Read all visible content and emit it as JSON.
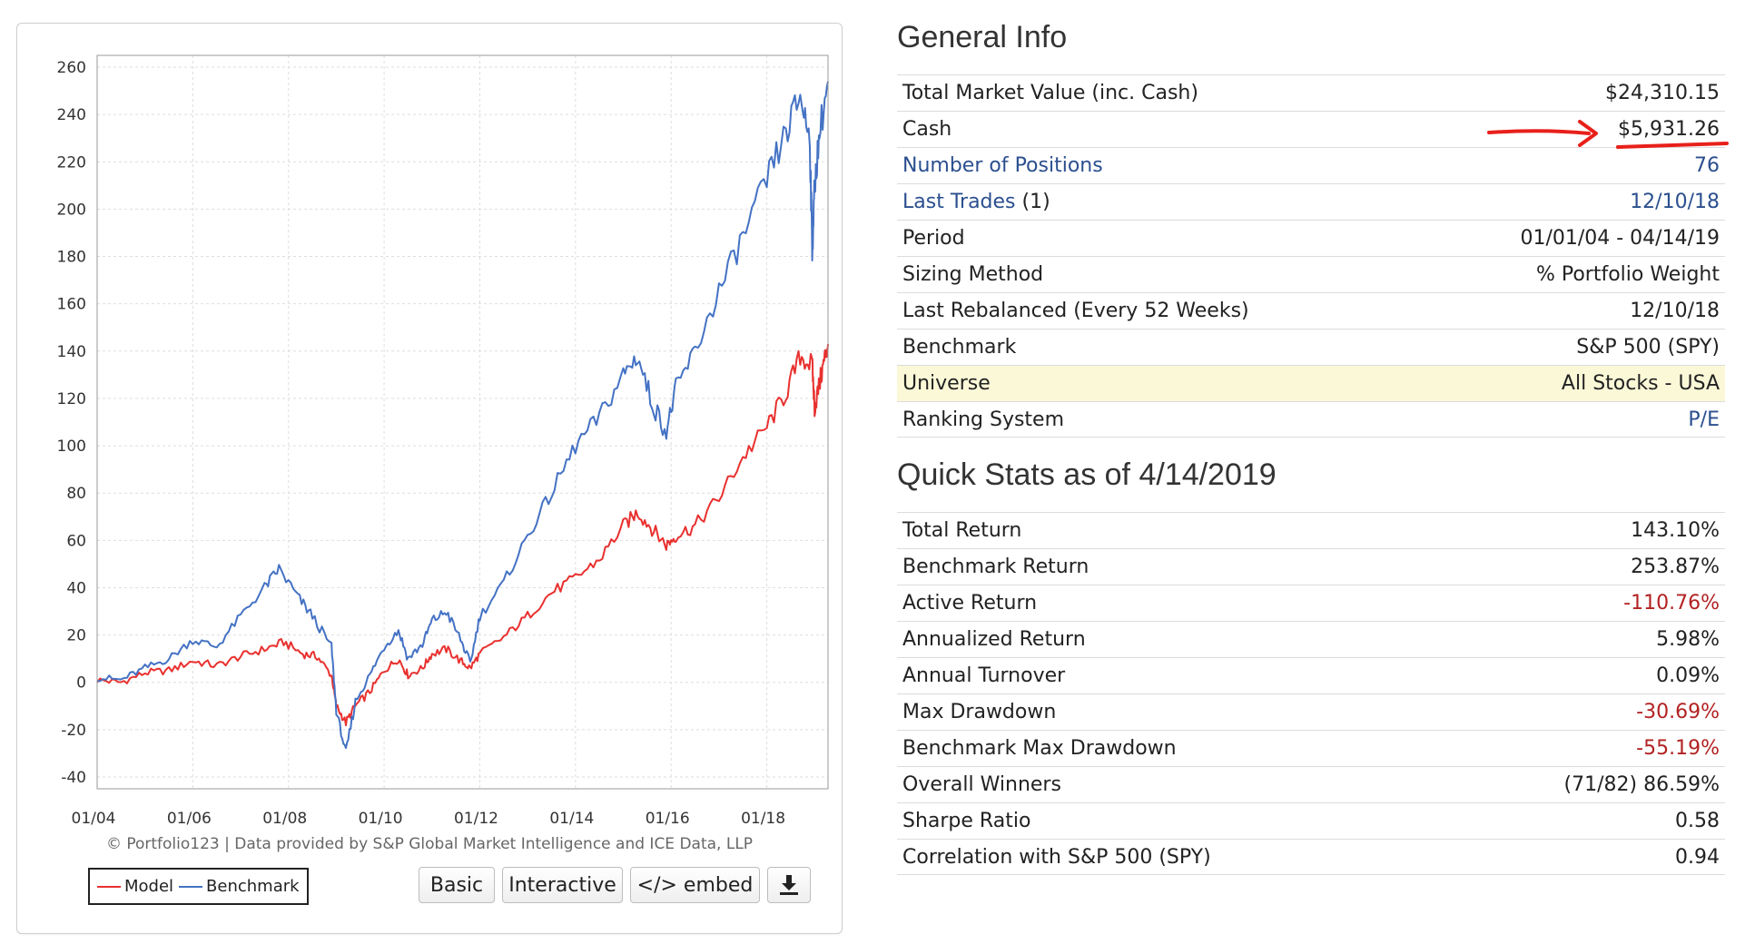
{
  "chart_data": {
    "type": "line",
    "xlabel": "",
    "ylabel": "",
    "x_ticks": [
      "01/04",
      "01/06",
      "01/08",
      "01/10",
      "01/12",
      "01/14",
      "01/16",
      "01/18"
    ],
    "x_range": [
      2004.0,
      2019.28
    ],
    "y_ticks": [
      260,
      240,
      220,
      200,
      180,
      160,
      140,
      120,
      100,
      80,
      60,
      40,
      20,
      0,
      -20,
      -40
    ],
    "ylim": [
      -45,
      265
    ],
    "grid": true,
    "legend_position": "bottom-left",
    "series": [
      {
        "name": "Model",
        "color": "#e8312f",
        "x": [
          2004.0,
          2004.5,
          2005.0,
          2005.5,
          2006.0,
          2006.5,
          2007.0,
          2007.5,
          2007.9,
          2008.3,
          2008.6,
          2008.9,
          2009.0,
          2009.2,
          2009.4,
          2009.7,
          2010.0,
          2010.3,
          2010.5,
          2010.8,
          2011.0,
          2011.3,
          2011.6,
          2011.8,
          2012.0,
          2012.5,
          2013.0,
          2013.5,
          2014.0,
          2014.5,
          2015.0,
          2015.3,
          2015.6,
          2015.9,
          2016.1,
          2016.5,
          2017.0,
          2017.5,
          2018.0,
          2018.4,
          2018.7,
          2018.95,
          2019.0,
          2019.1,
          2019.2,
          2019.28
        ],
        "y": [
          1,
          0,
          4,
          5,
          9,
          7,
          11,
          14,
          17,
          12,
          11,
          3,
          -10,
          -17,
          -10,
          -4,
          5,
          10,
          3,
          6,
          12,
          14,
          9,
          6,
          12,
          19,
          28,
          38,
          44,
          52,
          66,
          72,
          65,
          58,
          62,
          66,
          78,
          95,
          108,
          122,
          138,
          134,
          116,
          126,
          136,
          143
        ]
      },
      {
        "name": "Benchmark",
        "color": "#4472c4",
        "x": [
          2004.0,
          2004.5,
          2005.0,
          2005.5,
          2006.0,
          2006.5,
          2007.0,
          2007.5,
          2007.8,
          2008.2,
          2008.5,
          2008.9,
          2009.0,
          2009.2,
          2009.4,
          2009.7,
          2010.0,
          2010.3,
          2010.5,
          2010.8,
          2011.0,
          2011.3,
          2011.6,
          2011.8,
          2012.0,
          2012.5,
          2013.0,
          2013.5,
          2014.0,
          2014.5,
          2015.0,
          2015.3,
          2015.6,
          2015.9,
          2016.1,
          2016.5,
          2017.0,
          2017.5,
          2018.0,
          2018.4,
          2018.7,
          2018.9,
          2018.95,
          2019.0,
          2019.1,
          2019.28
        ],
        "y": [
          2,
          1,
          6,
          10,
          18,
          15,
          28,
          40,
          48,
          36,
          28,
          15,
          -12,
          -30,
          -8,
          3,
          15,
          22,
          10,
          16,
          26,
          30,
          18,
          8,
          28,
          42,
          62,
          80,
          100,
          112,
          130,
          138,
          118,
          106,
          124,
          140,
          165,
          188,
          212,
          232,
          248,
          230,
          182,
          210,
          232,
          254
        ]
      }
    ]
  },
  "chart_panel": {
    "credit": "© Portfolio123 | Data provided by S&P Global Market Intelligence and ICE Data, LLP",
    "legend": {
      "model": "Model",
      "benchmark": "Benchmark"
    },
    "buttons": {
      "basic": "Basic",
      "interactive": "Interactive",
      "embed": "</> embed"
    },
    "download_icon": "download-icon"
  },
  "general_info": {
    "title": "General Info",
    "rows": [
      {
        "label": "Total Market Value (inc. Cash)",
        "value": "$24,310.15"
      },
      {
        "label": "Cash",
        "value": "$5,931.26"
      },
      {
        "label": "Number of Positions",
        "value": "76"
      },
      {
        "label": "Last Trades",
        "label_suffix": " (1)",
        "value": "12/10/18"
      },
      {
        "label": "Period",
        "value": "01/01/04 - 04/14/19"
      },
      {
        "label": "Sizing Method",
        "value": "% Portfolio Weight"
      },
      {
        "label": "Last Rebalanced (Every 52 Weeks)",
        "value": "12/10/18"
      },
      {
        "label": "Benchmark",
        "value": "S&P 500 (SPY)"
      },
      {
        "label": "Universe",
        "value": "All Stocks - USA"
      },
      {
        "label": "Ranking System",
        "value": "P/E"
      }
    ]
  },
  "quick_stats": {
    "title": "Quick Stats as of 4/14/2019",
    "rows": [
      {
        "label": "Total Return",
        "value": "143.10%"
      },
      {
        "label": "Benchmark Return",
        "value": "253.87%"
      },
      {
        "label": "Active Return",
        "value": "-110.76%"
      },
      {
        "label": "Annualized Return",
        "value": "5.98%"
      },
      {
        "label": "Annual Turnover",
        "value": "0.09%"
      },
      {
        "label": "Max Drawdown",
        "value": "-30.69%"
      },
      {
        "label": "Benchmark Max Drawdown",
        "value": "-55.19%"
      },
      {
        "label": "Overall Winners",
        "value": "(71/82) 86.59%"
      },
      {
        "label": "Sharpe Ratio",
        "value": "0.58"
      },
      {
        "label": "Correlation with S&P 500 (SPY)",
        "value": "0.94"
      }
    ]
  },
  "colors": {
    "link": "#2b4f8f",
    "negative": "#b22222",
    "highlight_row": "#fbf8d8",
    "annotation": "#e8201a"
  }
}
